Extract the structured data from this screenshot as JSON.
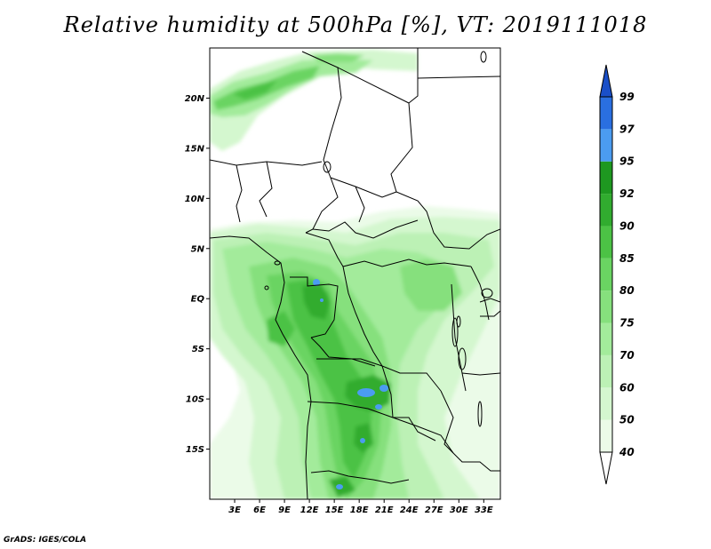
{
  "title": "Relative humidity at 500hPa [%], VT: 2019111018",
  "credit": "GrADS: IGES/COLA",
  "map": {
    "lat_range": [
      -20,
      25
    ],
    "lon_range": [
      0,
      35
    ],
    "lat_ticks": [
      {
        "value": 20,
        "label": "20N"
      },
      {
        "value": 15,
        "label": "15N"
      },
      {
        "value": 10,
        "label": "10N"
      },
      {
        "value": 5,
        "label": "5N"
      },
      {
        "value": 0,
        "label": "EQ"
      },
      {
        "value": -5,
        "label": "5S"
      },
      {
        "value": -10,
        "label": "10S"
      },
      {
        "value": -15,
        "label": "15S"
      }
    ],
    "lon_ticks": [
      {
        "value": 3,
        "label": "3E"
      },
      {
        "value": 6,
        "label": "6E"
      },
      {
        "value": 9,
        "label": "9E"
      },
      {
        "value": 12,
        "label": "12E"
      },
      {
        "value": 15,
        "label": "15E"
      },
      {
        "value": 18,
        "label": "18E"
      },
      {
        "value": 21,
        "label": "21E"
      },
      {
        "value": 24,
        "label": "24E"
      },
      {
        "value": 27,
        "label": "27E"
      },
      {
        "value": 30,
        "label": "30E"
      },
      {
        "value": 33,
        "label": "33E"
      }
    ]
  },
  "colorbar": {
    "levels": [
      "40",
      "50",
      "60",
      "70",
      "75",
      "80",
      "85",
      "90",
      "92",
      "95",
      "97",
      "99"
    ],
    "colors": {
      "below_40": "#ffffff",
      "40_50": "#ebfbe8",
      "50_60": "#d4f7cf",
      "60_70": "#bcf1b5",
      "70_75": "#a3eb9b",
      "75_80": "#86e07d",
      "80_85": "#6ad462",
      "85_90": "#4cc245",
      "90_92": "#31ac2f",
      "92_95": "#1e9820",
      "95_97": "#4b9cf0",
      "97_99": "#2a6fe0",
      "above_99": "#1a4fc8"
    }
  }
}
